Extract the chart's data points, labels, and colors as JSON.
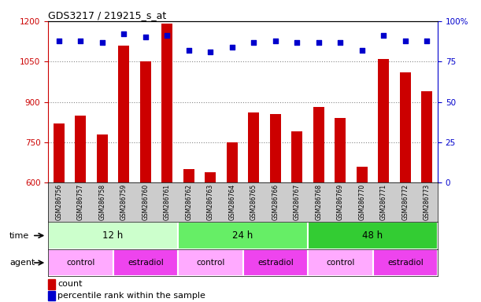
{
  "title": "GDS3217 / 219215_s_at",
  "samples": [
    "GSM286756",
    "GSM286757",
    "GSM286758",
    "GSM286759",
    "GSM286760",
    "GSM286761",
    "GSM286762",
    "GSM286763",
    "GSM286764",
    "GSM286765",
    "GSM286766",
    "GSM286767",
    "GSM286768",
    "GSM286769",
    "GSM286770",
    "GSM286771",
    "GSM286772",
    "GSM286773"
  ],
  "counts": [
    820,
    850,
    780,
    1110,
    1050,
    1190,
    650,
    640,
    750,
    860,
    855,
    790,
    880,
    840,
    660,
    1060,
    1010,
    940
  ],
  "percentile_ranks": [
    88,
    88,
    87,
    92,
    90,
    91,
    82,
    81,
    84,
    87,
    88,
    87,
    87,
    87,
    82,
    91,
    88,
    88
  ],
  "ylim_left": [
    600,
    1200
  ],
  "ylim_right": [
    0,
    100
  ],
  "yticks_left": [
    600,
    750,
    900,
    1050,
    1200
  ],
  "yticks_right": [
    0,
    25,
    50,
    75,
    100
  ],
  "bar_color": "#CC0000",
  "dot_color": "#0000CC",
  "bar_bottom": 600,
  "time_groups": [
    {
      "label": "12 h",
      "start": 0,
      "end": 6,
      "color": "#CCFFCC"
    },
    {
      "label": "24 h",
      "start": 6,
      "end": 12,
      "color": "#66EE66"
    },
    {
      "label": "48 h",
      "start": 12,
      "end": 18,
      "color": "#33CC33"
    }
  ],
  "agent_groups": [
    {
      "label": "control",
      "start": 0,
      "end": 3,
      "color": "#FFAAFF"
    },
    {
      "label": "estradiol",
      "start": 3,
      "end": 6,
      "color": "#EE44EE"
    },
    {
      "label": "control",
      "start": 6,
      "end": 9,
      "color": "#FFAAFF"
    },
    {
      "label": "estradiol",
      "start": 9,
      "end": 12,
      "color": "#EE44EE"
    },
    {
      "label": "control",
      "start": 12,
      "end": 15,
      "color": "#FFAAFF"
    },
    {
      "label": "estradiol",
      "start": 15,
      "end": 18,
      "color": "#EE44EE"
    }
  ],
  "ylabel_left_color": "#CC0000",
  "ylabel_right_color": "#0000CC",
  "grid_color": "#888888",
  "tick_label_bg": "#CCCCCC",
  "legend_bar_color": "#CC0000",
  "legend_dot_color": "#0000CC"
}
